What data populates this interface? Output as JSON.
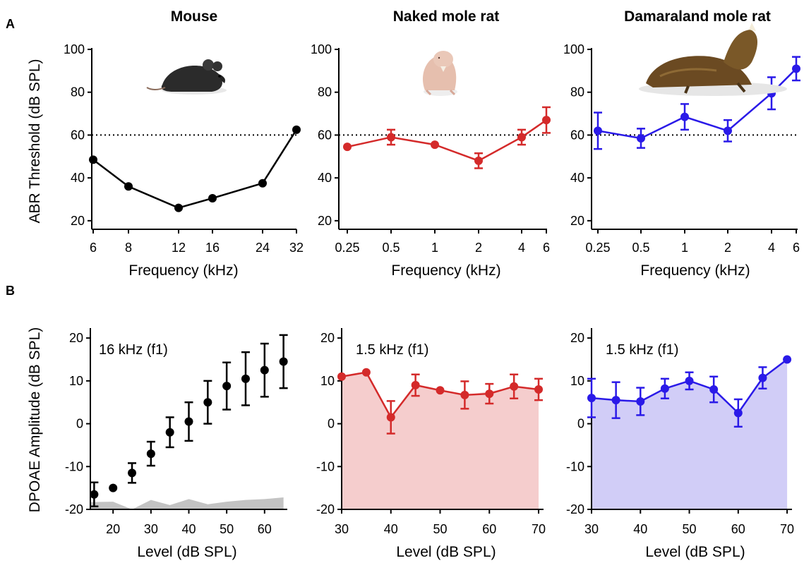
{
  "figure": {
    "panel_letters": [
      "A",
      "B"
    ],
    "row_a_ylabel": "ABR Threshold (dB SPL)",
    "row_b_ylabel": "DPOAE Amplitude (dB SPL)"
  },
  "colors": {
    "mouse": "#000000",
    "naked_mole_rat": "#d42a2a",
    "damaraland_mole_rat": "#2a1ae8",
    "mouse_fill": "#bdbdbd",
    "naked_fill": "#f3c4c4",
    "damaraland_fill": "#c9c4f6"
  },
  "icons": [
    "mouse-photo",
    "naked-mole-rat-photo",
    "damaraland-mole-rat-photo"
  ],
  "chart_data": [
    {
      "type": "line",
      "panel": "A",
      "title": "Mouse",
      "xlabel": "Frequency (kHz)",
      "ylabel": "ABR Threshold (dB SPL)",
      "x_scale": "log",
      "categories": [
        "6",
        "8",
        "12",
        "16",
        "24",
        "32"
      ],
      "ylim": [
        16,
        100
      ],
      "yticks": [
        20,
        40,
        60,
        80,
        100
      ],
      "reference_line": 60,
      "series": [
        {
          "values": [
            48.5,
            36,
            26,
            30.5,
            37.5,
            62.5
          ],
          "errors": [
            0,
            0,
            0,
            0,
            0,
            0
          ],
          "color": "#000000"
        }
      ]
    },
    {
      "type": "line",
      "panel": "A",
      "title": "Naked mole rat",
      "xlabel": "Frequency (kHz)",
      "ylabel": "",
      "x_scale": "log",
      "categories": [
        "0.25",
        "0.5",
        "1",
        "2",
        "4",
        "6"
      ],
      "ylim": [
        16,
        100
      ],
      "yticks": [
        20,
        40,
        60,
        80,
        100
      ],
      "reference_line": 60,
      "series": [
        {
          "values": [
            54.5,
            59,
            55.5,
            48,
            59,
            67
          ],
          "errors": [
            0,
            3.5,
            0,
            3.5,
            3.5,
            6
          ],
          "color": "#d42a2a"
        }
      ]
    },
    {
      "type": "line",
      "panel": "A",
      "title": "Damaraland mole rat",
      "xlabel": "Frequency (kHz)",
      "ylabel": "",
      "x_scale": "log",
      "categories": [
        "0.25",
        "0.5",
        "1",
        "2",
        "4",
        "6"
      ],
      "ylim": [
        16,
        100
      ],
      "yticks": [
        20,
        40,
        60,
        80,
        100
      ],
      "reference_line": 60,
      "series": [
        {
          "values": [
            62,
            58.5,
            68.5,
            62,
            79.5,
            91
          ],
          "errors": [
            8.5,
            4.5,
            6,
            5,
            7.5,
            5.5
          ],
          "color": "#2a1ae8"
        }
      ]
    },
    {
      "type": "line",
      "panel": "B",
      "annotation": "16 kHz (f1)",
      "xlabel": "Level (dB SPL)",
      "ylabel": "DPOAE Amplitude (dB SPL)",
      "xlim": [
        14,
        66
      ],
      "xticks": [
        20,
        30,
        40,
        50,
        60
      ],
      "ylim": [
        -20,
        22
      ],
      "yticks": [
        -20,
        -10,
        0,
        10,
        20
      ],
      "connect": false,
      "noise_floor": {
        "x": [
          14,
          20,
          25,
          30,
          35,
          40,
          45,
          50,
          55,
          60,
          65
        ],
        "y": [
          -18.3,
          -18.2,
          -20,
          -17.8,
          -19,
          -17.6,
          -18.8,
          -18.2,
          -17.8,
          -17.6,
          -17.2
        ]
      },
      "series": [
        {
          "x": [
            15,
            20,
            25,
            30,
            35,
            40,
            45,
            50,
            55,
            60,
            65
          ],
          "values": [
            -16.5,
            -15,
            -11.5,
            -7,
            -2,
            0.5,
            5,
            8.8,
            10.5,
            12.5,
            14.5
          ],
          "errors": [
            2.8,
            0,
            2.3,
            2.8,
            3.5,
            4.5,
            5,
            5.5,
            6.2,
            6.2,
            6.2
          ],
          "color": "#000000"
        }
      ]
    },
    {
      "type": "line",
      "panel": "B",
      "annotation": "1.5 kHz (f1)",
      "xlabel": "Level (dB SPL)",
      "ylabel": "",
      "xlim": [
        30,
        71
      ],
      "xticks": [
        30,
        40,
        50,
        60,
        70
      ],
      "ylim": [
        -20,
        22
      ],
      "yticks": [
        -20,
        -10,
        0,
        10,
        20
      ],
      "connect": true,
      "noise_floor": {
        "x": [
          30,
          35,
          40,
          45,
          50,
          55,
          60,
          65,
          70
        ],
        "y": [
          11,
          12,
          1.5,
          9,
          8,
          6.7,
          7.5,
          8.5,
          8
        ]
      },
      "series": [
        {
          "x": [
            30,
            35,
            40,
            45,
            50,
            55,
            60,
            65,
            70
          ],
          "values": [
            11,
            12,
            1.5,
            9,
            7.8,
            6.7,
            7,
            8.7,
            8
          ],
          "errors": [
            0,
            0,
            3.8,
            2.5,
            0,
            3.2,
            2.3,
            2.8,
            2.5
          ],
          "color": "#d42a2a"
        }
      ]
    },
    {
      "type": "line",
      "panel": "B",
      "annotation": "1.5 kHz (f1)",
      "xlabel": "Level (dB SPL)",
      "ylabel": "",
      "xlim": [
        30,
        71
      ],
      "xticks": [
        30,
        40,
        50,
        60,
        70
      ],
      "ylim": [
        -20,
        22
      ],
      "yticks": [
        -20,
        -10,
        0,
        10,
        20
      ],
      "connect": true,
      "noise_floor": {
        "x": [
          30,
          35,
          40,
          45,
          50,
          55,
          60,
          65,
          70
        ],
        "y": [
          6,
          5.5,
          5.2,
          8.2,
          10,
          8,
          2.5,
          10.7,
          15
        ]
      },
      "series": [
        {
          "x": [
            30,
            35,
            40,
            45,
            50,
            55,
            60,
            65,
            70
          ],
          "values": [
            6,
            5.5,
            5.2,
            8.2,
            10,
            8,
            2.5,
            10.7,
            15
          ],
          "errors": [
            4.5,
            4.2,
            3.2,
            2.3,
            2,
            3,
            3.2,
            2.5,
            0
          ],
          "color": "#2a1ae8"
        }
      ]
    }
  ]
}
